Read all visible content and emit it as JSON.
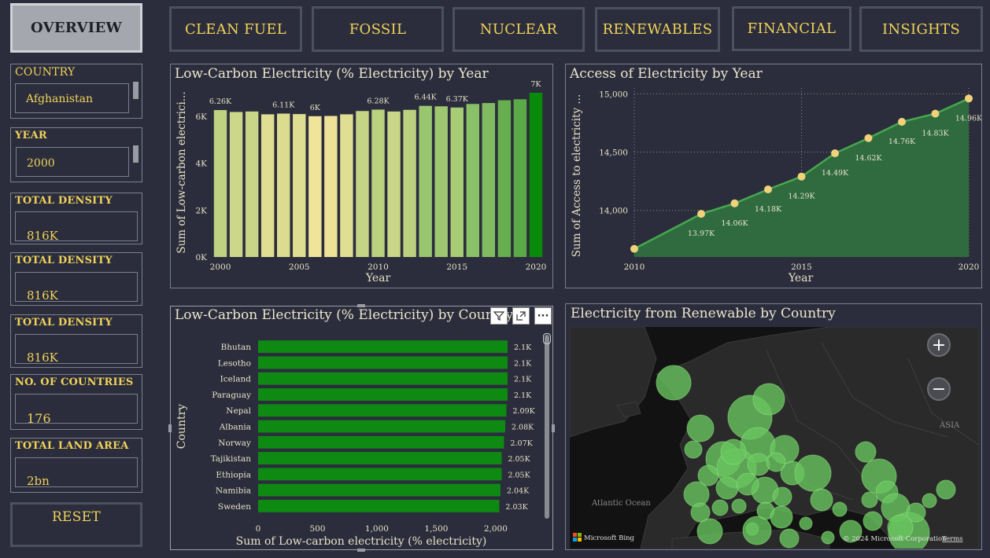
{
  "nav": {
    "overview": "OVERVIEW",
    "tabs": [
      "CLEAN FUEL",
      "FOSSIL",
      "NUCLEAR",
      "RENEWABLES",
      "FINANCIAL",
      "INSIGHTS"
    ],
    "reset": "RESET"
  },
  "filters": {
    "country": {
      "label": "COUNTRY",
      "value": "Afghanistan"
    },
    "year": {
      "label": "YEAR",
      "value": "2000"
    }
  },
  "cards": [
    {
      "label": "TOTAL DENSITY",
      "value": "816K"
    },
    {
      "label": "TOTAL DENSITY",
      "value": "816K"
    },
    {
      "label": "TOTAL DENSITY",
      "value": "816K"
    },
    {
      "label": "NO. OF COUNTRIES",
      "value": "176"
    },
    {
      "label": "TOTAL LAND AREA",
      "value": "2bn"
    }
  ],
  "colors": {
    "accent": "#f0d25a",
    "bar_green": "#0e8a12",
    "area_green": "#2f6b3f",
    "line_green": "#46a84e",
    "point_yellow": "#f0d27a"
  },
  "chart_data": [
    {
      "type": "bar",
      "title": "Low-Carbon Electricity (% Electricity) by Year",
      "xlabel": "Year",
      "ylabel": "Sum of Low-carbon electrici...",
      "categories": [
        2000,
        2001,
        2002,
        2003,
        2004,
        2005,
        2006,
        2007,
        2008,
        2009,
        2010,
        2011,
        2012,
        2013,
        2014,
        2015,
        2016,
        2017,
        2018,
        2019,
        2020
      ],
      "values": [
        6260,
        6180,
        6200,
        6080,
        6110,
        6090,
        6000,
        6010,
        6080,
        6220,
        6280,
        6200,
        6270,
        6440,
        6420,
        6370,
        6520,
        6560,
        6680,
        6720,
        7000
      ],
      "data_labels": {
        "0": "6.26K",
        "4": "6.11K",
        "6": "6K",
        "10": "6.28K",
        "13": "6.44K",
        "15": "6.37K",
        "20": "7K"
      },
      "ylim": [
        0,
        7200
      ],
      "y_ticks": [
        "0K",
        "2K",
        "4K",
        "6K"
      ],
      "x_ticks": [
        "2000",
        "2005",
        "2010",
        "2015",
        "2020"
      ],
      "grid": false
    },
    {
      "type": "area",
      "title": "Access of Electricity by Year",
      "xlabel": "Year",
      "ylabel": "Sum of Access to electricity ...",
      "x": [
        2010,
        2012,
        2013,
        2014,
        2015,
        2016,
        2017,
        2018,
        2019,
        2020
      ],
      "y": [
        13670,
        13970,
        14060,
        14180,
        14290,
        14490,
        14620,
        14760,
        14830,
        14960
      ],
      "data_labels": [
        "",
        "13.97K",
        "14.06K",
        "14.18K",
        "14.29K",
        "14.49K",
        "14.62K",
        "14.76K",
        "14.83K",
        "14.96K"
      ],
      "ylim": [
        13600,
        15050
      ],
      "y_ticks": [
        "14,000",
        "14,500",
        "15,000"
      ],
      "x_ticks": [
        "2010",
        "2015",
        "2020"
      ],
      "grid": true
    },
    {
      "type": "bar",
      "orientation": "horizontal",
      "title": "Low-Carbon Electricity (% Electricity) by Country",
      "xlabel": "Sum of Low-carbon electricity (% electricity)",
      "ylabel": "Country",
      "categories": [
        "Bhutan",
        "Lesotho",
        "Iceland",
        "Paraguay",
        "Nepal",
        "Albania",
        "Norway",
        "Tajikistan",
        "Ethiopia",
        "Namibia",
        "Sweden"
      ],
      "values": [
        2100,
        2100,
        2100,
        2100,
        2090,
        2080,
        2070,
        2050,
        2050,
        2040,
        2030
      ],
      "data_labels": [
        "2.1K",
        "2.1K",
        "2.1K",
        "2.1K",
        "2.09K",
        "2.08K",
        "2.07K",
        "2.05K",
        "2.05K",
        "2.04K",
        "2.03K"
      ],
      "xlim": [
        0,
        2100
      ],
      "x_ticks": [
        "0",
        "500",
        "1,000",
        "1,500",
        "2,000"
      ],
      "grid": false
    }
  ],
  "map": {
    "title": "Electricity from Renewable by Country",
    "labels": {
      "ocean": "Atlantic Ocean",
      "continent": "ASIA"
    },
    "attribution": "Microsoft Bing",
    "copyright": "© 2024 Microsoft Corporation",
    "terms": "Terms",
    "zoom_in": "+",
    "zoom_out": "−"
  },
  "visual_tools": {
    "filter": "filter-icon",
    "focus": "focus-mode-icon",
    "more": "more-options-icon",
    "more_glyph": "···"
  }
}
